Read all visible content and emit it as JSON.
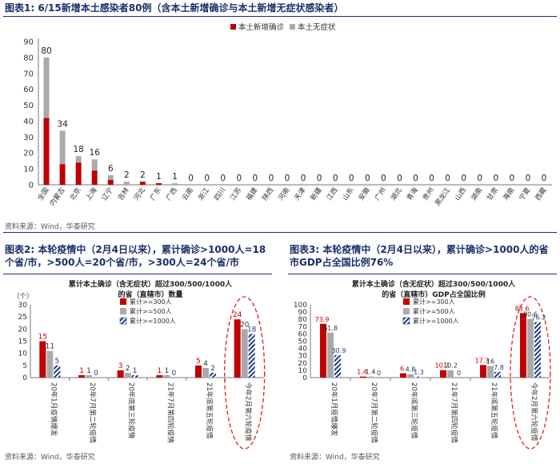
{
  "figures": [
    {
      "title": "图表1:  6/15新增本土感染者80例（含本土新增确诊与本土新增无症状感染者）",
      "source": "资料来源：Wind，华泰研究"
    },
    {
      "title": "图表2:  本轮疫情中（2月4日以来），累计确诊>1000人=18个省/市，>500人=20个省/市，>300人=24个省/市",
      "source": "资料来源：Wind，华泰研究"
    },
    {
      "title": "图表3:  本轮疫情中（2月4日以来），累计确诊>1000人的省市GDP占全国比例76%",
      "source": "资料来源：Wind，华泰研究"
    }
  ],
  "colors": {
    "red": "#c00000",
    "gray": "#aaaaaa",
    "navy": "#1f3c88",
    "title": "#1a2f6b",
    "ellipse": "#e02020"
  },
  "chart_data": [
    {
      "type": "bar",
      "stacked": true,
      "legend_position": "top-center",
      "categories": [
        "全国",
        "内蒙古",
        "北京",
        "上海",
        "辽宁",
        "吉林",
        "河北",
        "广东",
        "广西",
        "云南",
        "浙江",
        "四川",
        "江苏",
        "福建",
        "陕西",
        "河南",
        "天津",
        "新疆",
        "江西",
        "山东",
        "安徽",
        "广州",
        "湖北",
        "青海",
        "贵州",
        "黑龙江",
        "山西",
        "湖南",
        "甘肃",
        "海南",
        "宁夏",
        "西藏"
      ],
      "series": [
        {
          "name": "本土新增确诊",
          "color": "#c00000",
          "values": [
            42,
            13,
            14,
            9,
            3,
            0,
            2,
            1,
            0,
            0,
            0,
            0,
            0,
            0,
            0,
            0,
            0,
            0,
            0,
            0,
            0,
            0,
            0,
            0,
            0,
            0,
            0,
            0,
            0,
            0,
            0,
            0
          ]
        },
        {
          "name": "本土无症状",
          "color": "#aaaaaa",
          "values": [
            38,
            21,
            4,
            7,
            3,
            2,
            0,
            0,
            1,
            0,
            0,
            0,
            0,
            0,
            0,
            0,
            0,
            0,
            0,
            0,
            0,
            0,
            0,
            0,
            0,
            0,
            0,
            0,
            0,
            0,
            0,
            0
          ]
        }
      ],
      "totals": [
        80,
        34,
        18,
        16,
        6,
        2,
        2,
        1,
        1,
        0,
        0,
        0,
        0,
        0,
        0,
        0,
        0,
        0,
        0,
        0,
        0,
        0,
        0,
        0,
        0,
        0,
        0,
        0,
        0,
        0,
        0,
        0
      ],
      "ylim": [
        0,
        90
      ],
      "yticks": [
        0,
        10,
        20,
        30,
        40,
        50,
        60,
        70,
        80,
        90
      ]
    },
    {
      "type": "bar",
      "chart_title_lines": [
        "累计本土确诊（含无症状）超过300/500/1000人",
        "的省（直辖市）数量"
      ],
      "yunit": "（个）",
      "legend_position": "top-center",
      "categories": [
        "20年1月疫情爆发",
        "20年7月第二轮疫情",
        "20年底第三轮疫情",
        "21年7月第四轮疫情",
        "21年底第五轮疫情",
        "今年2月第六轮疫情"
      ],
      "series": [
        {
          "name": "累计>=300人",
          "style": "red",
          "values": [
            15,
            1,
            3,
            1,
            5,
            24
          ]
        },
        {
          "name": "累计>=500人",
          "style": "gray",
          "values": [
            11,
            1,
            2,
            1,
            4,
            20
          ]
        },
        {
          "name": "累计>=1000人",
          "style": "hatch",
          "values": [
            5,
            0,
            1,
            0,
            2,
            18
          ]
        }
      ],
      "ylim": [
        0,
        30
      ],
      "yticks": [
        0,
        5,
        10,
        15,
        20,
        25,
        30
      ],
      "highlight": "今年2月第六轮疫情"
    },
    {
      "type": "bar",
      "chart_title_lines": [
        "累计本土确诊（含无症状）超过300/500/1000人",
        "的省（直辖市）GDP占全国比例"
      ],
      "legend_position": "top-center",
      "categories": [
        "20年1月疫情爆发",
        "20年7月第二轮疫情",
        "20年底第三轮疫情",
        "21年7月第四轮疫情",
        "21年底第五轮疫情",
        "今年2月第六轮疫情"
      ],
      "series": [
        {
          "name": "累计>=300人",
          "style": "red",
          "values": [
            73.9,
            1.4,
            6.0,
            10.2,
            17.3,
            88.6
          ]
        },
        {
          "name": "累计>=500人",
          "style": "gray",
          "values": [
            61.8,
            1.4,
            4.8,
            10.2,
            16.0,
            80.6
          ]
        },
        {
          "name": "累计>=1000人",
          "style": "hatch",
          "values": [
            30.9,
            0.0,
            1.3,
            0.0,
            7.8,
            76.2
          ]
        }
      ],
      "ylim": [
        0,
        100
      ],
      "yticks": [
        0,
        10,
        20,
        30,
        40,
        50,
        60,
        70,
        80,
        90,
        100
      ],
      "highlight": "今年2月第六轮疫情"
    }
  ]
}
